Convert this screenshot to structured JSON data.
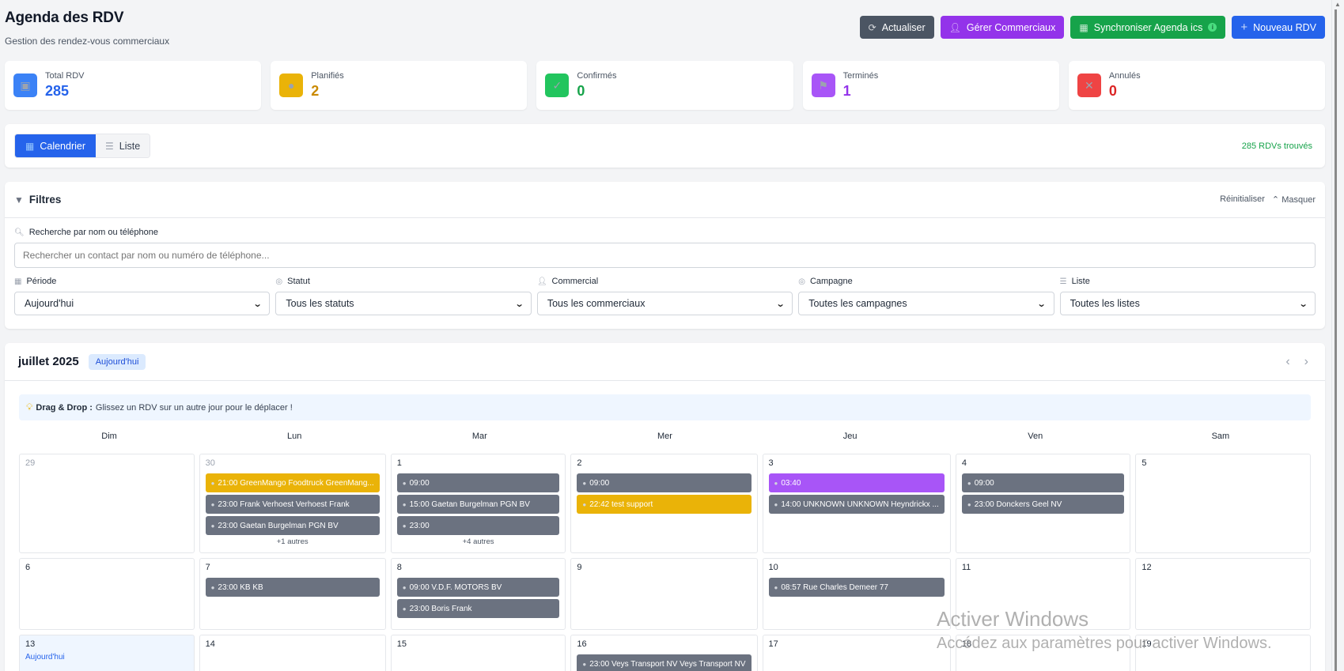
{
  "header": {
    "title": "Agenda des RDV",
    "subtitle": "Gestion des rendez-vous commerciaux",
    "buttons": {
      "refresh": "Actualiser",
      "manage_sales": "Gérer Commerciaux",
      "sync_ics": "Synchroniser Agenda ics",
      "new_rdv": "Nouveau RDV"
    }
  },
  "stats": [
    {
      "label": "Total RDV",
      "value": "285",
      "color": "#2563eb",
      "icon_bg": "#3b82f6",
      "icon": "calendar-check-icon"
    },
    {
      "label": "Planifiés",
      "value": "2",
      "color": "#ca8a04",
      "icon_bg": "#eab308",
      "icon": "clock-icon"
    },
    {
      "label": "Confirmés",
      "value": "0",
      "color": "#16a34a",
      "icon_bg": "#22c55e",
      "icon": "check-icon"
    },
    {
      "label": "Terminés",
      "value": "1",
      "color": "#9333ea",
      "icon_bg": "#a855f7",
      "icon": "flag-icon"
    },
    {
      "label": "Annulés",
      "value": "0",
      "color": "#dc2626",
      "icon_bg": "#ef4444",
      "icon": "x-icon"
    }
  ],
  "view": {
    "calendar_label": "Calendrier",
    "list_label": "Liste",
    "active": "Calendrier",
    "found_text": "285 RDVs trouvés"
  },
  "filters": {
    "title": "Filtres",
    "reset": "Réinitialiser",
    "hide": "Masquer",
    "search_label": "Recherche par nom ou téléphone",
    "search_placeholder": "Rechercher un contact par nom ou numéro de téléphone...",
    "search_value": "",
    "period": {
      "label": "Période",
      "value": "Aujourd'hui"
    },
    "status": {
      "label": "Statut",
      "value": "Tous les statuts"
    },
    "sales": {
      "label": "Commercial",
      "value": "Tous les commerciaux"
    },
    "campaign": {
      "label": "Campagne",
      "value": "Toutes les campagnes"
    },
    "list": {
      "label": "Liste",
      "value": "Toutes les listes"
    }
  },
  "calendar": {
    "month": "juillet 2025",
    "today_button": "Aujourd'hui",
    "tip_bold": "Drag & Drop :",
    "tip_text": "Glissez un RDV sur un autre jour pour le déplacer !",
    "weekdays": [
      "Dim",
      "Lun",
      "Mar",
      "Mer",
      "Jeu",
      "Ven",
      "Sam"
    ],
    "today_label": "Aujourd'hui",
    "weeks": [
      [
        {
          "day": "29",
          "muted": true,
          "events": []
        },
        {
          "day": "30",
          "muted": true,
          "events": [
            {
              "text": "21:00 GreenMango Foodtruck GreenMang...",
              "color": "yellow"
            },
            {
              "text": "23:00 Frank Verhoest Verhoest Frank",
              "color": "gray"
            },
            {
              "text": "23:00 Gaetan Burgelman PGN BV",
              "color": "gray"
            }
          ],
          "more": "+1 autres"
        },
        {
          "day": "1",
          "events": [
            {
              "text": "09:00",
              "color": "gray"
            },
            {
              "text": "15:00 Gaetan Burgelman PGN BV",
              "color": "gray"
            },
            {
              "text": "23:00",
              "color": "gray"
            }
          ],
          "more": "+4 autres"
        },
        {
          "day": "2",
          "events": [
            {
              "text": "09:00",
              "color": "gray"
            },
            {
              "text": "22:42 test support",
              "color": "yellow"
            }
          ]
        },
        {
          "day": "3",
          "events": [
            {
              "text": "03:40",
              "color": "purple"
            },
            {
              "text": "14:00 UNKNOWN UNKNOWN Heyndrickx ...",
              "color": "gray"
            }
          ]
        },
        {
          "day": "4",
          "events": [
            {
              "text": "09:00",
              "color": "gray"
            },
            {
              "text": "23:00 Donckers Geel NV",
              "color": "gray"
            }
          ]
        },
        {
          "day": "5",
          "events": []
        }
      ],
      [
        {
          "day": "6",
          "events": []
        },
        {
          "day": "7",
          "events": [
            {
              "text": "23:00 KB KB",
              "color": "gray"
            }
          ]
        },
        {
          "day": "8",
          "events": [
            {
              "text": "09:00 V.D.F. MOTORS BV",
              "color": "gray"
            },
            {
              "text": "23:00 Boris Frank",
              "color": "gray"
            }
          ]
        },
        {
          "day": "9",
          "events": []
        },
        {
          "day": "10",
          "events": [
            {
              "text": "08:57 Rue Charles Demeer 77",
              "color": "gray"
            }
          ]
        },
        {
          "day": "11",
          "events": []
        },
        {
          "day": "12",
          "events": []
        }
      ],
      [
        {
          "day": "13",
          "today": true,
          "events": []
        },
        {
          "day": "14",
          "events": []
        },
        {
          "day": "15",
          "events": []
        },
        {
          "day": "16",
          "events": [
            {
              "text": "23:00 Veys Transport NV Veys Transport NV",
              "color": "gray"
            }
          ]
        },
        {
          "day": "17",
          "events": []
        },
        {
          "day": "18",
          "events": []
        },
        {
          "day": "19",
          "events": []
        }
      ]
    ]
  },
  "watermark": {
    "line1": "Activer Windows",
    "line2": "Accédez aux paramètres pour activer Windows."
  }
}
